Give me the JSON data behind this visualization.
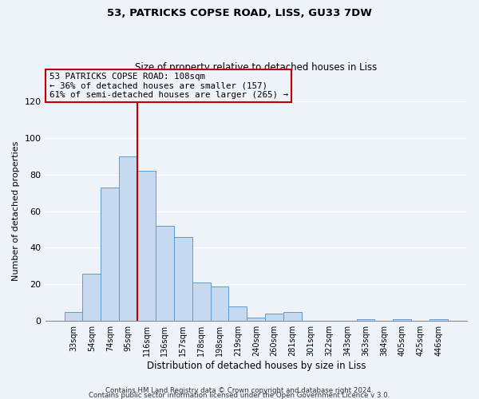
{
  "title": "53, PATRICKS COPSE ROAD, LISS, GU33 7DW",
  "subtitle": "Size of property relative to detached houses in Liss",
  "xlabel": "Distribution of detached houses by size in Liss",
  "ylabel": "Number of detached properties",
  "bar_labels": [
    "33sqm",
    "54sqm",
    "74sqm",
    "95sqm",
    "116sqm",
    "136sqm",
    "157sqm",
    "178sqm",
    "198sqm",
    "219sqm",
    "240sqm",
    "260sqm",
    "281sqm",
    "301sqm",
    "322sqm",
    "343sqm",
    "363sqm",
    "384sqm",
    "405sqm",
    "425sqm",
    "446sqm"
  ],
  "bar_heights": [
    5,
    26,
    73,
    90,
    82,
    52,
    46,
    21,
    19,
    8,
    2,
    4,
    5,
    0,
    0,
    0,
    1,
    0,
    1,
    0,
    1
  ],
  "bar_color": "#c6d9f1",
  "bar_edge_color": "#5b9bd5",
  "vline_x_index": 4,
  "vline_color": "#c00000",
  "ylim": [
    0,
    120
  ],
  "yticks": [
    0,
    20,
    40,
    60,
    80,
    100,
    120
  ],
  "annotation_title": "53 PATRICKS COPSE ROAD: 108sqm",
  "annotation_line1": "← 36% of detached houses are smaller (157)",
  "annotation_line2": "61% of semi-detached houses are larger (265) →",
  "annotation_box_edge": "#c00000",
  "footer1": "Contains HM Land Registry data © Crown copyright and database right 2024.",
  "footer2": "Contains public sector information licensed under the Open Government Licence v 3.0.",
  "background_color": "#eef2f9"
}
